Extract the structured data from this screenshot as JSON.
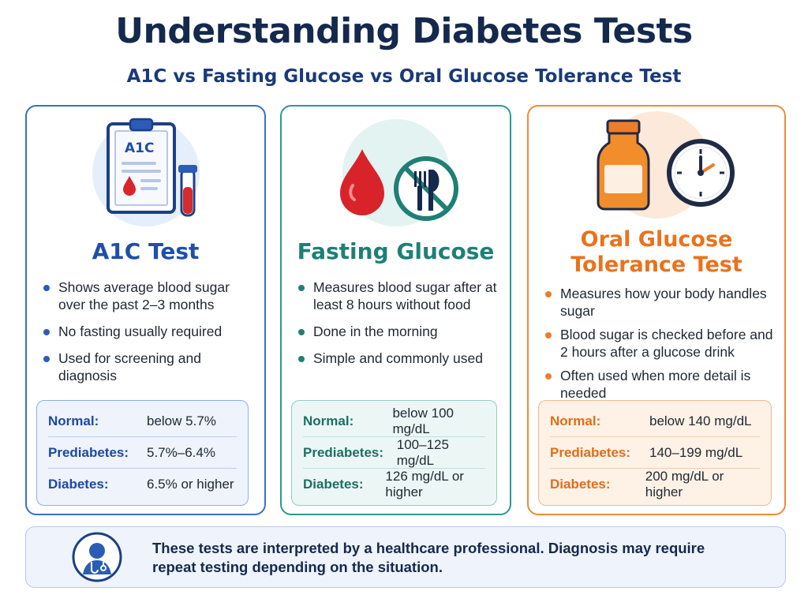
{
  "title": "Understanding Diabetes Tests",
  "subtitle": "A1C vs Fasting Glucose vs Oral Glucose Tolerance Test",
  "colors": {
    "blue": "#3b6fc9",
    "teal": "#2a9a8f",
    "orange": "#ef8a3a",
    "navy": "#15294d"
  },
  "cards": [
    {
      "icon": "clipboard-a1c-icon",
      "icon_text": "A1C",
      "title": "A1C Test",
      "bullets": [
        "Shows average blood sugar over the past 2–3 months",
        "No fasting usually required",
        "Used for screening and diagnosis"
      ],
      "ranges": [
        {
          "label": "Normal:",
          "value": "below 5.7%"
        },
        {
          "label": "Prediabetes:",
          "value": "5.7%–6.4%"
        },
        {
          "label": "Diabetes:",
          "value": "6.5% or higher"
        }
      ]
    },
    {
      "icon": "blood-drop-no-food-icon",
      "title": "Fasting Glucose",
      "bullets": [
        "Measures blood sugar after at least 8 hours without food",
        "Done in the morning",
        "Simple and commonly used"
      ],
      "ranges": [
        {
          "label": "Normal:",
          "value": "below 100 mg/dL"
        },
        {
          "label": "Prediabetes:",
          "value": "100–125 mg/dL"
        },
        {
          "label": "Diabetes:",
          "value": "126 mg/dL or higher"
        }
      ]
    },
    {
      "icon": "glucose-bottle-clock-icon",
      "title": "Oral Glucose Tolerance Test",
      "bullets": [
        "Measures how your body handles sugar",
        "Blood sugar is checked before and 2 hours after a glucose drink",
        "Often used when more detail is needed"
      ],
      "ranges": [
        {
          "label": "Normal:",
          "value": "below 140 mg/dL"
        },
        {
          "label": "Prediabetes:",
          "value": "140–199 mg/dL"
        },
        {
          "label": "Diabetes:",
          "value": "200 mg/dL or higher"
        }
      ]
    }
  ],
  "note": {
    "icon": "doctor-icon",
    "text": "These tests are interpreted by a healthcare professional. Diagnosis may require repeat testing depending on the situation."
  }
}
